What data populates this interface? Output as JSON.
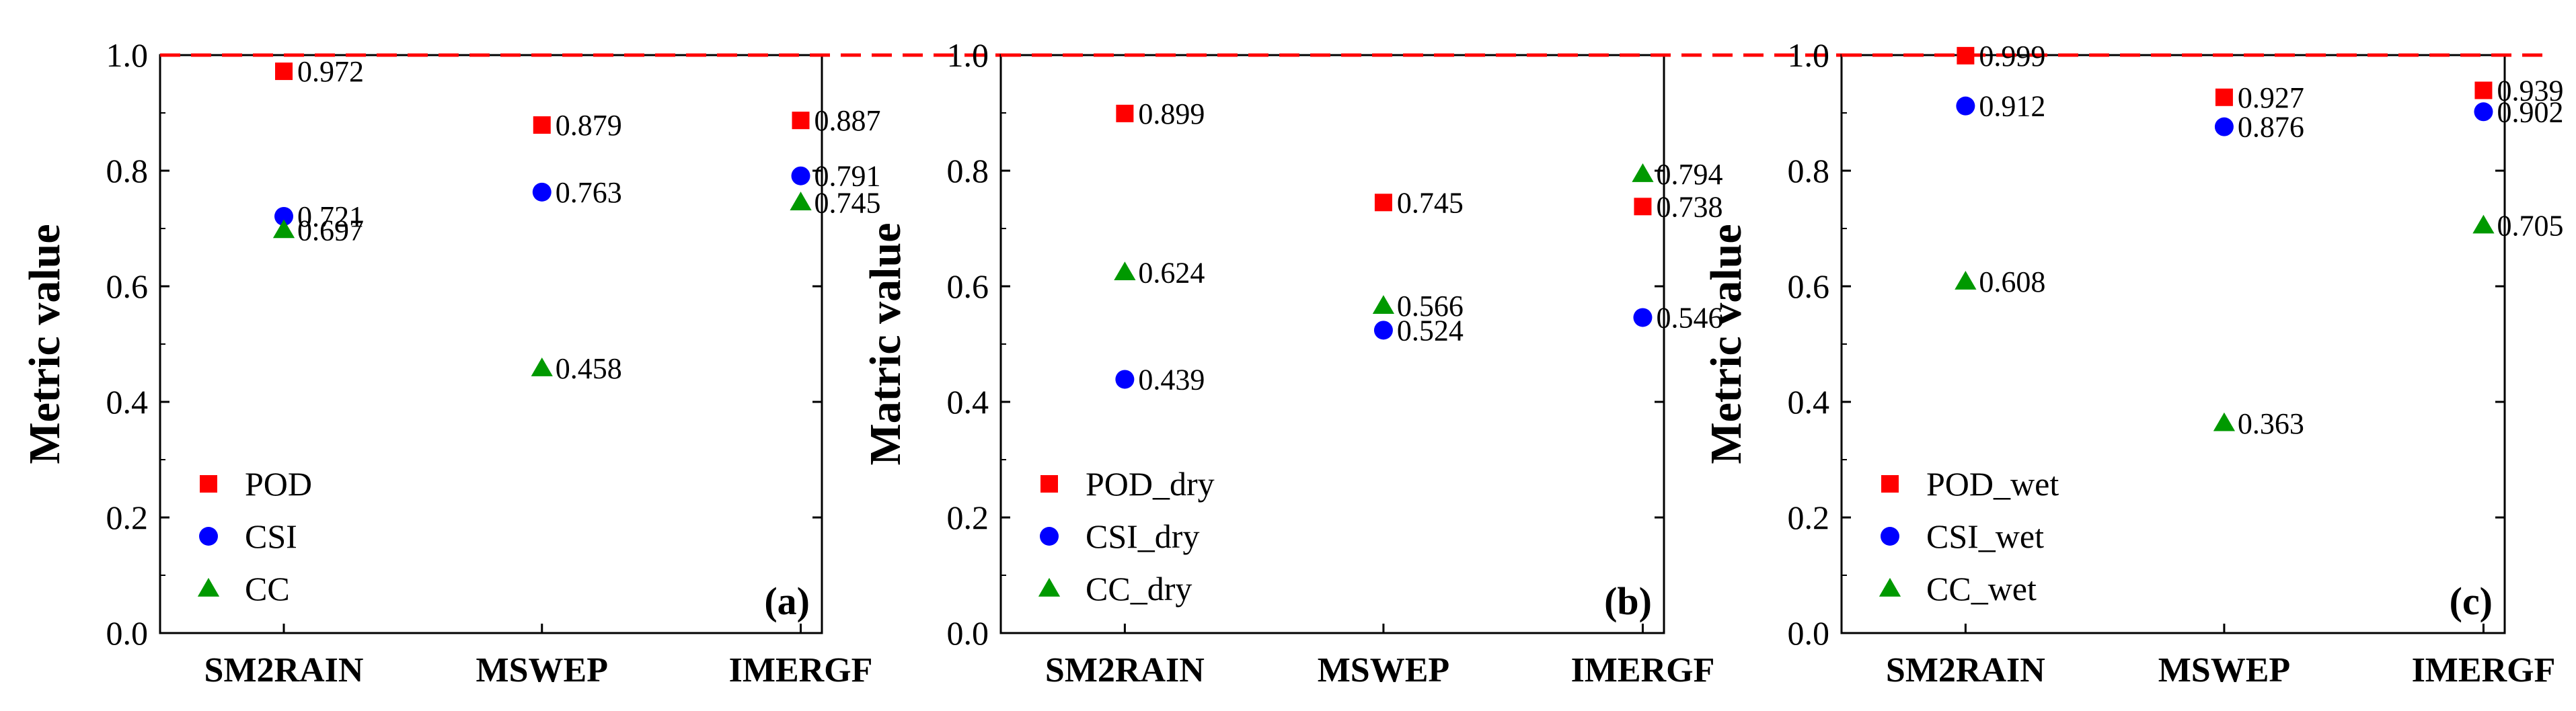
{
  "chart_data": [
    {
      "type": "scatter",
      "panel_label": "(a)",
      "ylabel": "Metric value",
      "ylim": [
        0.0,
        1.0
      ],
      "yticks": [
        "0.0",
        "0.2",
        "0.4",
        "0.6",
        "0.8",
        "1.0"
      ],
      "categories": [
        "SM2RAIN",
        "MSWEP",
        "IMERGF"
      ],
      "reference_line": 1.0,
      "legend_position": "bottom-left",
      "series": [
        {
          "name": "POD",
          "marker": "square",
          "color": "#ff0000",
          "values": [
            0.972,
            0.879,
            0.887
          ],
          "labels": [
            "0.972",
            "0.879",
            "0.887"
          ]
        },
        {
          "name": "CSI",
          "marker": "circle",
          "color": "#0000ff",
          "values": [
            0.721,
            0.763,
            0.791
          ],
          "labels": [
            "0.721",
            "0.763",
            "0.791"
          ]
        },
        {
          "name": "CC",
          "marker": "triangle",
          "color": "#009900",
          "values": [
            0.697,
            0.458,
            0.745
          ],
          "labels": [
            "0.697",
            "0.458",
            "0.745"
          ]
        }
      ]
    },
    {
      "type": "scatter",
      "panel_label": "(b)",
      "ylabel": "Matric value",
      "ylim": [
        0.0,
        1.0
      ],
      "yticks": [
        "0.0",
        "0.2",
        "0.4",
        "0.6",
        "0.8",
        "1.0"
      ],
      "categories": [
        "SM2RAIN",
        "MSWEP",
        "IMERGF"
      ],
      "reference_line": 1.0,
      "legend_position": "bottom-left",
      "series": [
        {
          "name": "POD_dry",
          "marker": "square",
          "color": "#ff0000",
          "values": [
            0.899,
            0.745,
            0.738
          ],
          "labels": [
            "0.899",
            "0.745",
            "0.738"
          ]
        },
        {
          "name": "CSI_dry",
          "marker": "circle",
          "color": "#0000ff",
          "values": [
            0.439,
            0.524,
            0.546
          ],
          "labels": [
            "0.439",
            "0.524",
            "0.546"
          ]
        },
        {
          "name": "CC_dry",
          "marker": "triangle",
          "color": "#009900",
          "values": [
            0.624,
            0.566,
            0.794
          ],
          "labels": [
            "0.624",
            "0.566",
            "0.794"
          ]
        }
      ]
    },
    {
      "type": "scatter",
      "panel_label": "(c)",
      "ylabel": "Metric value",
      "ylim": [
        0.0,
        1.0
      ],
      "yticks": [
        "0.0",
        "0.2",
        "0.4",
        "0.6",
        "0.8",
        "1.0"
      ],
      "categories": [
        "SM2RAIN",
        "MSWEP",
        "IMERGF"
      ],
      "reference_line": 1.0,
      "legend_position": "bottom-left",
      "series": [
        {
          "name": "POD_wet",
          "marker": "square",
          "color": "#ff0000",
          "values": [
            0.999,
            0.927,
            0.939
          ],
          "labels": [
            "0.999",
            "0.927",
            "0.939"
          ]
        },
        {
          "name": "CSI_wet",
          "marker": "circle",
          "color": "#0000ff",
          "values": [
            0.912,
            0.876,
            0.902
          ],
          "labels": [
            "0.912",
            "0.876",
            "0.902"
          ]
        },
        {
          "name": "CC_wet",
          "marker": "triangle",
          "color": "#009900",
          "values": [
            0.608,
            0.363,
            0.705
          ],
          "labels": [
            "0.608",
            "0.363",
            "0.705"
          ]
        }
      ]
    }
  ]
}
